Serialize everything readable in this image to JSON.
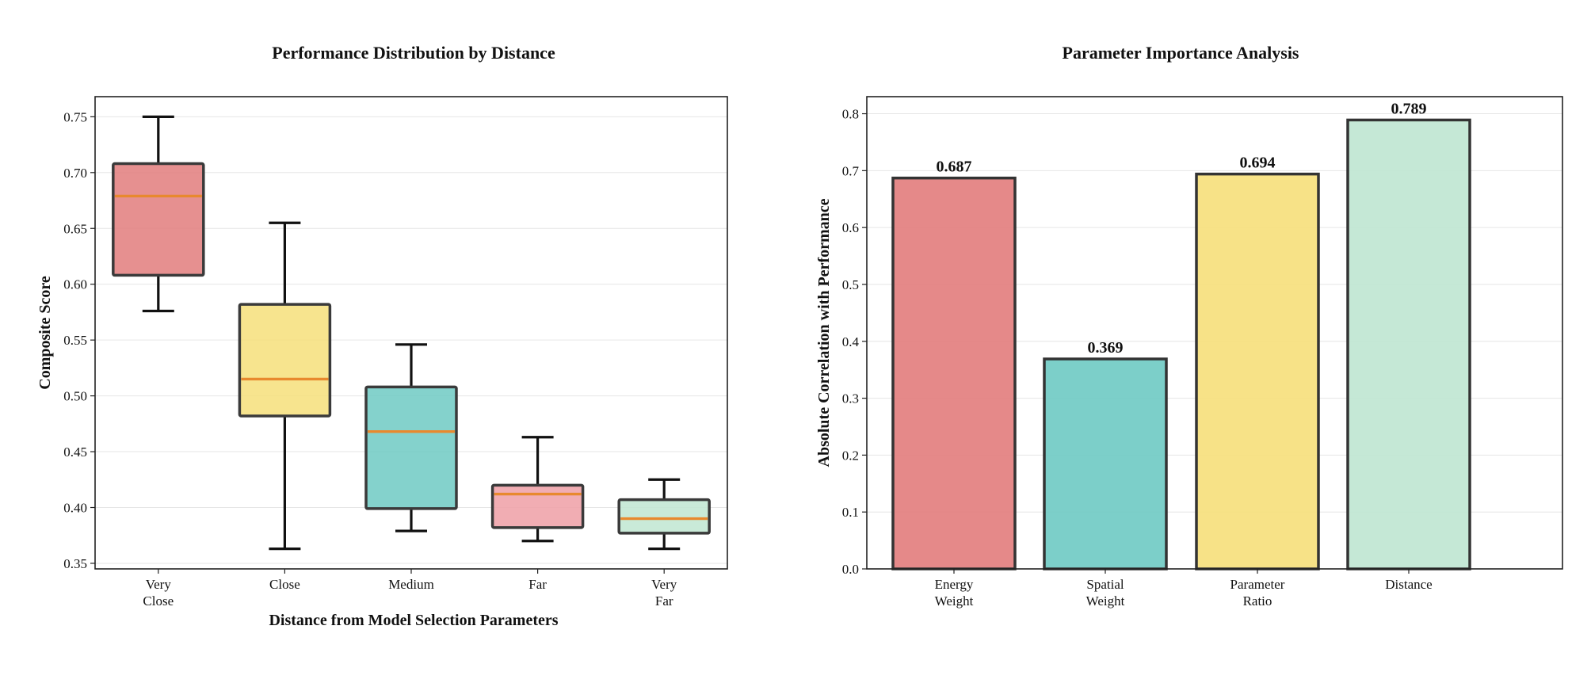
{
  "chart_data": [
    {
      "type": "box",
      "title": "Performance Distribution by Distance",
      "xlabel": "Distance from Model Selection Parameters",
      "ylabel": "Composite Score",
      "ylim": [
        0.345,
        0.768
      ],
      "yticks": [
        0.35,
        0.4,
        0.45,
        0.5,
        0.55,
        0.6,
        0.65,
        0.7,
        0.75
      ],
      "ytick_labels": [
        "0.35",
        "0.40",
        "0.45",
        "0.50",
        "0.55",
        "0.60",
        "0.65",
        "0.70",
        "0.75"
      ],
      "grid": true,
      "categories": [
        {
          "lines": [
            "Very",
            "Close"
          ]
        },
        {
          "lines": [
            "Close"
          ]
        },
        {
          "lines": [
            "Medium"
          ]
        },
        {
          "lines": [
            "Far"
          ]
        },
        {
          "lines": [
            "Very",
            "Far"
          ]
        }
      ],
      "boxes": [
        {
          "whisker_low": 0.576,
          "q1": 0.608,
          "median": 0.679,
          "q3": 0.708,
          "whisker_high": 0.75,
          "color": "#e27c7c"
        },
        {
          "whisker_low": 0.363,
          "q1": 0.482,
          "median": 0.515,
          "q3": 0.582,
          "whisker_high": 0.655,
          "color": "#f6df7a"
        },
        {
          "whisker_low": 0.379,
          "q1": 0.399,
          "median": 0.468,
          "q3": 0.508,
          "whisker_high": 0.546,
          "color": "#6ecac3"
        },
        {
          "whisker_low": 0.37,
          "q1": 0.382,
          "median": 0.412,
          "q3": 0.42,
          "whisker_high": 0.463,
          "color": "#ef9fa6"
        },
        {
          "whisker_low": 0.363,
          "q1": 0.377,
          "median": 0.39,
          "q3": 0.407,
          "whisker_high": 0.425,
          "color": "#bfe6d1"
        }
      ],
      "median_color": "#e8892e"
    },
    {
      "type": "bar",
      "title": "Parameter Importance Analysis",
      "xlabel": "",
      "ylabel": "Absolute Correlation with Performance",
      "ylim": [
        0.0,
        0.83
      ],
      "yticks": [
        0.0,
        0.1,
        0.2,
        0.3,
        0.4,
        0.5,
        0.6,
        0.7,
        0.8
      ],
      "ytick_labels": [
        "0.0",
        "0.1",
        "0.2",
        "0.3",
        "0.4",
        "0.5",
        "0.6",
        "0.7",
        "0.8"
      ],
      "grid": true,
      "categories": [
        {
          "lines": [
            "Energy",
            "Weight"
          ]
        },
        {
          "lines": [
            "Spatial",
            "Weight"
          ]
        },
        {
          "lines": [
            "Parameter",
            "Ratio"
          ]
        },
        {
          "lines": [
            "Distance"
          ]
        }
      ],
      "values": [
        0.687,
        0.369,
        0.694,
        0.789
      ],
      "value_labels": [
        "0.687",
        "0.369",
        "0.694",
        "0.789"
      ],
      "colors": [
        "#e27c7c",
        "#6ecac3",
        "#f6df7a",
        "#bfe6d1"
      ]
    }
  ]
}
